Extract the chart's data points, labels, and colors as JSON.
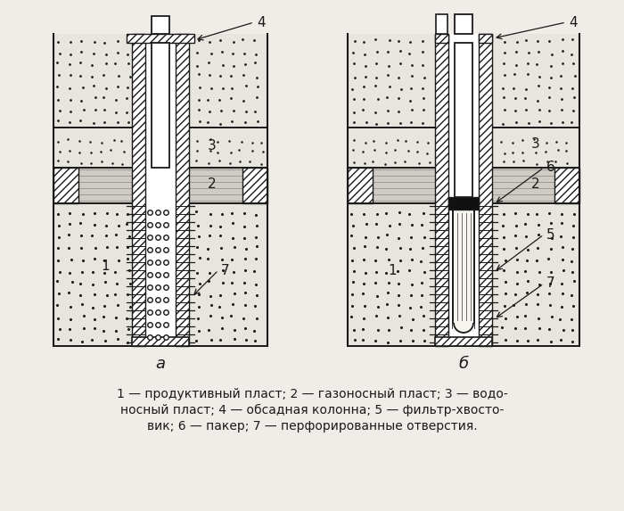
{
  "bg_color": "#f0ede8",
  "line_color": "#1a1a1a",
  "caption_line1": "1 — продуктивный пласт; 2 — газоносный пласт; 3 — водо-",
  "caption_line2": "носный пласт; 4 — обсадная колонна; 5 — фильтр-хвосто-",
  "caption_line3": "вик; 6 — пакер; 7 — перфорированные отверстия.",
  "label_a": "а",
  "label_b": "б",
  "lc": "#1a1a1a",
  "dot_color": "#444444",
  "hatch_fc": "#ffffff",
  "layer_dot_fc": "#e8e4de",
  "layer_line_fc": "#d0ccc4",
  "layer_top_fc": "#e8e4de"
}
